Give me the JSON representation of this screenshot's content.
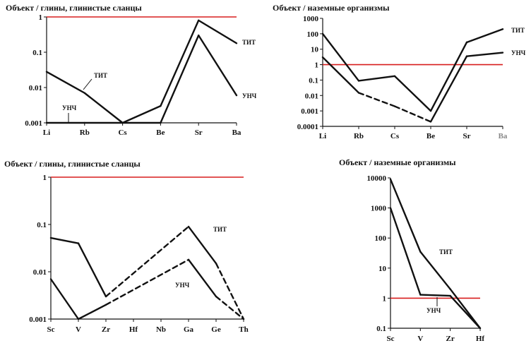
{
  "chart_data": [
    {
      "type": "line",
      "title": "Объект / глины, глинистые сланцы",
      "log_scale": true,
      "ylim": [
        0.001,
        1
      ],
      "ytick_labels": [
        "1",
        "0.1",
        "0.01",
        "0.001"
      ],
      "categories": [
        "Li",
        "Rb",
        "Cs",
        "Be",
        "Sr",
        "Ba"
      ],
      "reference_line": {
        "value": 1,
        "color": "#d81e1e"
      },
      "series": [
        {
          "name": "ТИТ",
          "values": [
            0.028,
            0.007,
            0.001,
            0.003,
            0.8,
            0.18
          ],
          "dashed_after": null
        },
        {
          "name": "УНЧ",
          "values": [
            0.001,
            0.001,
            null,
            0.001,
            0.3,
            0.006
          ],
          "dashed_after": null
        }
      ]
    },
    {
      "type": "line",
      "title": "Объект / наземные организмы",
      "log_scale": true,
      "ylim": [
        0.0001,
        1000
      ],
      "ytick_labels": [
        "1000",
        "100",
        "10",
        "1",
        "0.1",
        "0.01",
        "0.001",
        "0.0001"
      ],
      "categories": [
        "Li",
        "Rb",
        "Cs",
        "Be",
        "Sr",
        "Ba"
      ],
      "reference_line": {
        "value": 1,
        "color": "#d81e1e"
      },
      "series": [
        {
          "name": "ТИТ",
          "values": [
            100,
            0.09,
            0.18,
            0.001,
            28,
            200
          ],
          "dashed_after": null
        },
        {
          "name": "УНЧ",
          "values": [
            3,
            0.015,
            0.002,
            0.0002,
            3.5,
            6
          ],
          "dashed_after": 1
        }
      ]
    },
    {
      "type": "line",
      "title": "Объект / глины, глинистые сланцы",
      "log_scale": true,
      "ylim": [
        0.001,
        1
      ],
      "ytick_labels": [
        "1",
        "0.1",
        "0.01",
        "0.001"
      ],
      "categories": [
        "Sc",
        "V",
        "Zr",
        "Hf",
        "Nb",
        "Ga",
        "Ge",
        "Th"
      ],
      "reference_line": {
        "value": 1,
        "color": "#d81e1e"
      },
      "series": [
        {
          "name": "ТИТ",
          "points": [
            [
              0,
              0.052
            ],
            [
              1,
              0.04
            ],
            [
              2,
              0.003
            ],
            [
              5,
              0.09
            ],
            [
              6,
              0.015
            ],
            [
              7,
              0.001
            ]
          ],
          "dashed": [
            false,
            false,
            true,
            false,
            true
          ]
        },
        {
          "name": "УНЧ",
          "points": [
            [
              0,
              0.007
            ],
            [
              1,
              0.001
            ],
            [
              2,
              0.002
            ],
            [
              5,
              0.018
            ],
            [
              6,
              0.003
            ],
            [
              7,
              0.001
            ]
          ],
          "dashed": [
            false,
            false,
            true,
            false,
            true
          ]
        }
      ]
    },
    {
      "type": "line",
      "title": "Объект / наземные организмы",
      "log_scale": true,
      "ylim": [
        0.1,
        10000
      ],
      "ytick_labels": [
        "10000",
        "1000",
        "100",
        "10",
        "1",
        "0.1"
      ],
      "categories": [
        "Sc",
        "V",
        "Zr",
        "Hf"
      ],
      "reference_line": {
        "value": 1,
        "color": "#d81e1e"
      },
      "series": [
        {
          "name": "ТИТ",
          "values": [
            9000,
            35,
            2,
            0.1
          ],
          "dashed_after": null
        },
        {
          "name": "УНЧ",
          "values": [
            1000,
            1.3,
            1.2,
            0.1
          ],
          "dashed_after": null
        }
      ]
    }
  ]
}
